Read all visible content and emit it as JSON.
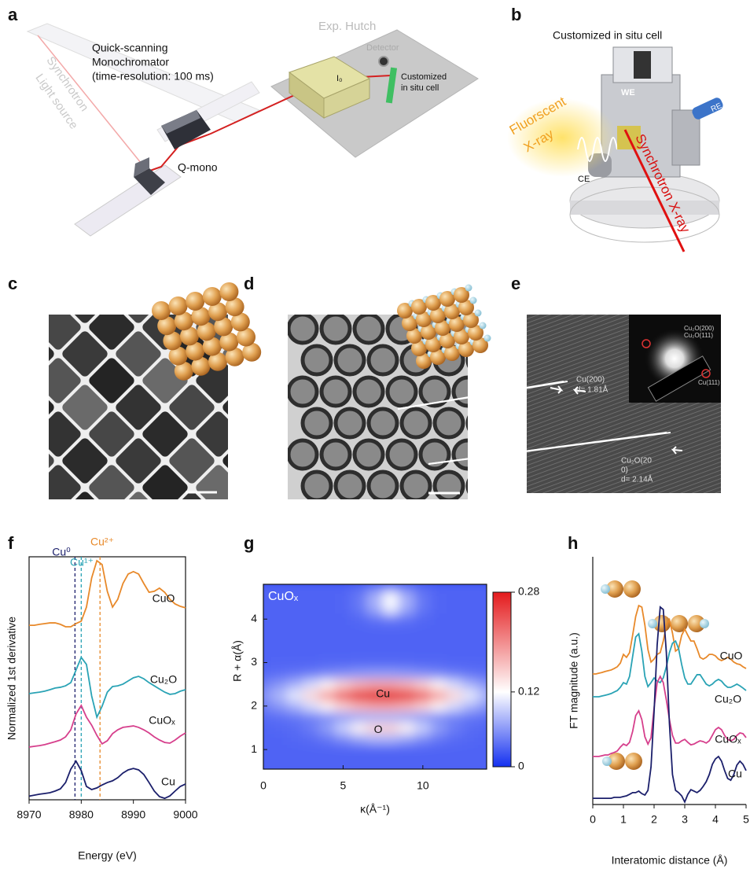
{
  "figure": {
    "panel_labels": [
      "a",
      "b",
      "c",
      "d",
      "e",
      "f",
      "g",
      "h"
    ],
    "a": {
      "source": [
        "Synchrotron",
        "Light source"
      ],
      "monochromator": [
        "Quick-scanning",
        "Monochromator",
        "(time-resolution: 100 ms)"
      ],
      "qmono": "Q-mono",
      "hutch": "Exp. Hutch",
      "io": "I₀",
      "detector": "Detector",
      "cell": [
        "Customized",
        "in situ cell"
      ]
    },
    "b": {
      "title": "Customized in situ cell",
      "we": "WE",
      "re": "RE",
      "ce": "CE",
      "fluorescent": [
        "Fluorscent",
        "X-ray"
      ],
      "beam": "Synchrotron X-ray"
    },
    "e": {
      "cu": [
        "Cu(200)",
        "d= 1.81Å"
      ],
      "cu2o": [
        "Cu₂O(20",
        "0)",
        "d= 2.14Å"
      ],
      "inset": [
        "Cu₂O(200)",
        "Cu₂O(111)",
        "Cu(111)"
      ]
    }
  },
  "chart_data": [
    {
      "type": "line",
      "xlabel": "Energy (eV)",
      "ylabel": "Normalized 1st derivative",
      "x": [
        8970,
        8971,
        8972,
        8973,
        8974,
        8975,
        8976,
        8977,
        8978,
        8979,
        8980,
        8981,
        8982,
        8983,
        8984,
        8985,
        8986,
        8987,
        8988,
        8989,
        8990,
        8991,
        8992,
        8993,
        8994,
        8995,
        8996,
        8997,
        8998,
        8999,
        9000
      ],
      "xlim": [
        8970,
        9000
      ],
      "xticks": [
        8970,
        8980,
        8990,
        9000
      ],
      "ylim": [
        0,
        10
      ],
      "reference_lines": [
        {
          "label": "Cu⁰",
          "x": 8978.8,
          "color": "#1b1f6b"
        },
        {
          "label": "Cu¹⁺",
          "x": 8980,
          "color": "#2aa3b5"
        },
        {
          "label": "Cu²⁺",
          "x": 8983.6,
          "color": "#e8892a"
        }
      ],
      "series": [
        {
          "name": "CuO",
          "color": "#e8892a",
          "values": [
            7.18,
            7.18,
            7.22,
            7.25,
            7.28,
            7.28,
            7.22,
            7.12,
            7.12,
            7.25,
            7.35,
            7.93,
            9.13,
            9.84,
            9.68,
            8.58,
            7.93,
            8.25,
            8.9,
            9.29,
            9.39,
            9.29,
            8.9,
            8.54,
            8.58,
            8.71,
            8.54,
            8.25,
            8.06,
            7.96,
            7.9
          ]
        },
        {
          "name": "Cu₂O",
          "color": "#2aa3b5",
          "values": [
            4.37,
            4.4,
            4.43,
            4.47,
            4.53,
            4.6,
            4.63,
            4.69,
            4.82,
            5.34,
            5.86,
            5.57,
            4.27,
            3.4,
            3.85,
            4.43,
            4.66,
            4.69,
            4.76,
            4.89,
            5.02,
            5.08,
            4.98,
            4.82,
            4.69,
            4.56,
            4.43,
            4.34,
            4.37,
            4.47,
            4.53
          ]
        },
        {
          "name": "CuOₓ",
          "color": "#d63f8c",
          "values": [
            2.17,
            2.2,
            2.23,
            2.27,
            2.33,
            2.39,
            2.46,
            2.59,
            2.88,
            3.53,
            3.88,
            3.4,
            3.07,
            2.65,
            2.3,
            2.43,
            2.72,
            2.88,
            2.98,
            3.01,
            3.04,
            2.98,
            2.88,
            2.75,
            2.59,
            2.46,
            2.36,
            2.33,
            2.46,
            2.62,
            2.75
          ]
        },
        {
          "name": "Cu",
          "color": "#1b1f6b",
          "values": [
            0.15,
            0.19,
            0.23,
            0.26,
            0.29,
            0.36,
            0.45,
            0.71,
            1.26,
            1.59,
            1.2,
            0.55,
            0.42,
            0.49,
            0.61,
            0.71,
            0.78,
            0.91,
            1.1,
            1.23,
            1.29,
            1.23,
            1.04,
            0.71,
            0.36,
            0.13,
            0.06,
            0.16,
            0.36,
            0.55,
            0.65
          ]
        }
      ]
    },
    {
      "type": "contour",
      "xlabel": "κ(Å⁻¹)",
      "ylabel": "R + α(Å)",
      "inset_label": "CuOₓ",
      "peak_labels": [
        "Cu",
        "O"
      ],
      "x": [
        0,
        1,
        2,
        3,
        4,
        5,
        6,
        7,
        8,
        9,
        10,
        11,
        12,
        13,
        14
      ],
      "y": [
        0.5,
        0.75,
        1.0,
        1.25,
        1.5,
        1.75,
        2.0,
        2.25,
        2.5,
        2.75,
        3.0,
        3.25,
        3.5,
        3.75,
        4.0,
        4.25,
        4.5,
        4.75
      ],
      "xlim": [
        0,
        14
      ],
      "ylim": [
        0.55,
        4.8
      ],
      "xticks": [
        0,
        5,
        10
      ],
      "yticks": [
        1,
        2,
        3,
        4
      ],
      "colorbar": {
        "range": [
          0,
          0.28
        ],
        "ticks": [
          0,
          0.12,
          0.28
        ],
        "colors": [
          "#1430f0",
          "#ffffff",
          "#e41a1c"
        ]
      },
      "z": [
        [
          0.03,
          0.03,
          0.03,
          0.03,
          0.03,
          0.03,
          0.03,
          0.03,
          0.03,
          0.03,
          0.03,
          0.03,
          0.03,
          0.03,
          0.03
        ],
        [
          0.03,
          0.03,
          0.03,
          0.03,
          0.03,
          0.03,
          0.03,
          0.03,
          0.03,
          0.03,
          0.03,
          0.03,
          0.03,
          0.03,
          0.03
        ],
        [
          0.03,
          0.03,
          0.03,
          0.03,
          0.03,
          0.03,
          0.03,
          0.03,
          0.03,
          0.03,
          0.03,
          0.03,
          0.03,
          0.03,
          0.03
        ],
        [
          0.03,
          0.03,
          0.032,
          0.035,
          0.042,
          0.054,
          0.067,
          0.077,
          0.077,
          0.067,
          0.054,
          0.042,
          0.035,
          0.032,
          0.03
        ],
        [
          0.03,
          0.032,
          0.035,
          0.044,
          0.063,
          0.093,
          0.128,
          0.151,
          0.151,
          0.128,
          0.093,
          0.063,
          0.044,
          0.035,
          0.032
        ],
        [
          0.034,
          0.036,
          0.041,
          0.047,
          0.054,
          0.064,
          0.072,
          0.077,
          0.077,
          0.072,
          0.064,
          0.054,
          0.047,
          0.041,
          0.036
        ],
        [
          0.046,
          0.059,
          0.076,
          0.099,
          0.126,
          0.152,
          0.173,
          0.184,
          0.184,
          0.173,
          0.152,
          0.126,
          0.099,
          0.076,
          0.059
        ],
        [
          0.057,
          0.078,
          0.107,
          0.146,
          0.189,
          0.233,
          0.268,
          0.279,
          0.279,
          0.268,
          0.233,
          0.189,
          0.146,
          0.107,
          0.078
        ],
        [
          0.046,
          0.059,
          0.076,
          0.099,
          0.126,
          0.152,
          0.173,
          0.184,
          0.184,
          0.173,
          0.152,
          0.126,
          0.099,
          0.076,
          0.059
        ],
        [
          0.034,
          0.036,
          0.04,
          0.045,
          0.051,
          0.056,
          0.061,
          0.064,
          0.064,
          0.061,
          0.056,
          0.051,
          0.045,
          0.04,
          0.036
        ],
        [
          0.03,
          0.031,
          0.031,
          0.031,
          0.032,
          0.032,
          0.033,
          0.033,
          0.033,
          0.033,
          0.032,
          0.032,
          0.031,
          0.031,
          0.031
        ],
        [
          0.03,
          0.03,
          0.03,
          0.03,
          0.03,
          0.03,
          0.03,
          0.03,
          0.03,
          0.03,
          0.03,
          0.03,
          0.03,
          0.03,
          0.03
        ],
        [
          0.03,
          0.03,
          0.03,
          0.03,
          0.03,
          0.03,
          0.03,
          0.03,
          0.03,
          0.03,
          0.03,
          0.03,
          0.03,
          0.03,
          0.03
        ],
        [
          0.03,
          0.03,
          0.03,
          0.03,
          0.03,
          0.03,
          0.03,
          0.03,
          0.03,
          0.03,
          0.03,
          0.03,
          0.03,
          0.03,
          0.03
        ],
        [
          0.03,
          0.03,
          0.03,
          0.03,
          0.03,
          0.03,
          0.032,
          0.039,
          0.044,
          0.039,
          0.032,
          0.03,
          0.03,
          0.03,
          0.03
        ],
        [
          0.03,
          0.03,
          0.03,
          0.03,
          0.03,
          0.031,
          0.041,
          0.07,
          0.11,
          0.07,
          0.041,
          0.031,
          0.03,
          0.03,
          0.03
        ],
        [
          0.03,
          0.03,
          0.03,
          0.03,
          0.03,
          0.031,
          0.042,
          0.075,
          0.12,
          0.075,
          0.042,
          0.031,
          0.03,
          0.03,
          0.03
        ],
        [
          0.03,
          0.03,
          0.03,
          0.03,
          0.03,
          0.03,
          0.034,
          0.043,
          0.051,
          0.043,
          0.034,
          0.03,
          0.03,
          0.03,
          0.03
        ]
      ]
    },
    {
      "type": "line",
      "xlabel": "Interatomic distance (Å)",
      "ylabel": "FT magnitude (a.u.)",
      "x": [
        0,
        0.1,
        0.2,
        0.3,
        0.4,
        0.5,
        0.6,
        0.7,
        0.8,
        0.9,
        1.0,
        1.1,
        1.2,
        1.3,
        1.4,
        1.5,
        1.6,
        1.7,
        1.8,
        1.9,
        2.0,
        2.1,
        2.2,
        2.3,
        2.4,
        2.5,
        2.6,
        2.7,
        2.8,
        2.9,
        3.0,
        3.1,
        3.2,
        3.3,
        3.4,
        3.5,
        3.6,
        3.7,
        3.8,
        3.9,
        4.0,
        4.1,
        4.2,
        4.3,
        4.4,
        4.5,
        4.6,
        4.7,
        4.8,
        4.9,
        5.0
      ],
      "xlim": [
        0,
        5
      ],
      "xticks": [
        0,
        1,
        2,
        3,
        4,
        5
      ],
      "ylim": [
        0,
        10
      ],
      "series": [
        {
          "name": "CuO",
          "color": "#e8892a",
          "values": [
            5.27,
            5.27,
            5.3,
            5.33,
            5.37,
            5.4,
            5.43,
            5.49,
            5.56,
            5.71,
            6.06,
            5.94,
            6.13,
            6.83,
            7.59,
            8.03,
            7.97,
            7.24,
            6.25,
            5.75,
            5.87,
            6.06,
            6.13,
            6.6,
            7.24,
            7.46,
            6.92,
            6.19,
            6.29,
            6.83,
            7.08,
            6.83,
            6.6,
            6.6,
            6.29,
            5.94,
            5.87,
            5.94,
            6.06,
            6.06,
            6.0,
            5.87,
            5.81,
            5.87,
            5.94,
            5.87,
            5.75,
            5.68,
            5.65,
            5.56,
            5.49
          ]
        },
        {
          "name": "Cu₂O",
          "color": "#2aa3b5",
          "values": [
            4.35,
            4.35,
            4.35,
            4.38,
            4.41,
            4.44,
            4.48,
            4.54,
            4.6,
            4.73,
            4.92,
            4.86,
            5.17,
            5.97,
            6.76,
            6.89,
            6.19,
            5.17,
            4.76,
            4.92,
            5.11,
            4.98,
            4.92,
            5.11,
            5.56,
            6.13,
            6.51,
            6.6,
            6.29,
            5.65,
            5.11,
            4.86,
            4.86,
            5.05,
            5.24,
            5.24,
            5.05,
            4.86,
            4.79,
            4.86,
            4.98,
            5.05,
            4.98,
            4.83,
            4.73,
            4.73,
            4.79,
            4.86,
            4.79,
            4.7,
            4.6
          ]
        },
        {
          "name": "CuOₓ",
          "color": "#d63f8c",
          "values": [
            1.94,
            1.94,
            1.94,
            1.97,
            2.0,
            2.0,
            2.06,
            2.1,
            2.16,
            2.32,
            2.44,
            2.38,
            2.51,
            2.95,
            3.59,
            3.78,
            3.43,
            2.73,
            2.44,
            2.7,
            3.9,
            4.92,
            5.17,
            4.92,
            4.22,
            3.43,
            2.79,
            2.48,
            2.48,
            2.57,
            2.63,
            2.51,
            2.41,
            2.44,
            2.51,
            2.57,
            2.54,
            2.48,
            2.57,
            2.79,
            3.02,
            3.11,
            3.02,
            2.79,
            2.63,
            2.57,
            2.63,
            2.79,
            2.89,
            2.86,
            2.7
          ]
        },
        {
          "name": "Cu",
          "color": "#1b1f6b",
          "values": [
            0.25,
            0.25,
            0.25,
            0.25,
            0.25,
            0.25,
            0.25,
            0.29,
            0.29,
            0.29,
            0.32,
            0.35,
            0.41,
            0.48,
            0.48,
            0.54,
            0.44,
            0.38,
            0.57,
            1.52,
            3.75,
            6.44,
            7.97,
            7.87,
            6.13,
            3.27,
            1.21,
            0.57,
            0.48,
            0.35,
            0.1,
            0.41,
            0.6,
            0.54,
            0.48,
            0.57,
            0.73,
            0.92,
            1.21,
            1.62,
            1.84,
            1.94,
            1.75,
            1.37,
            1.05,
            0.98,
            1.21,
            1.59,
            1.75,
            1.62,
            1.37
          ]
        }
      ]
    }
  ]
}
